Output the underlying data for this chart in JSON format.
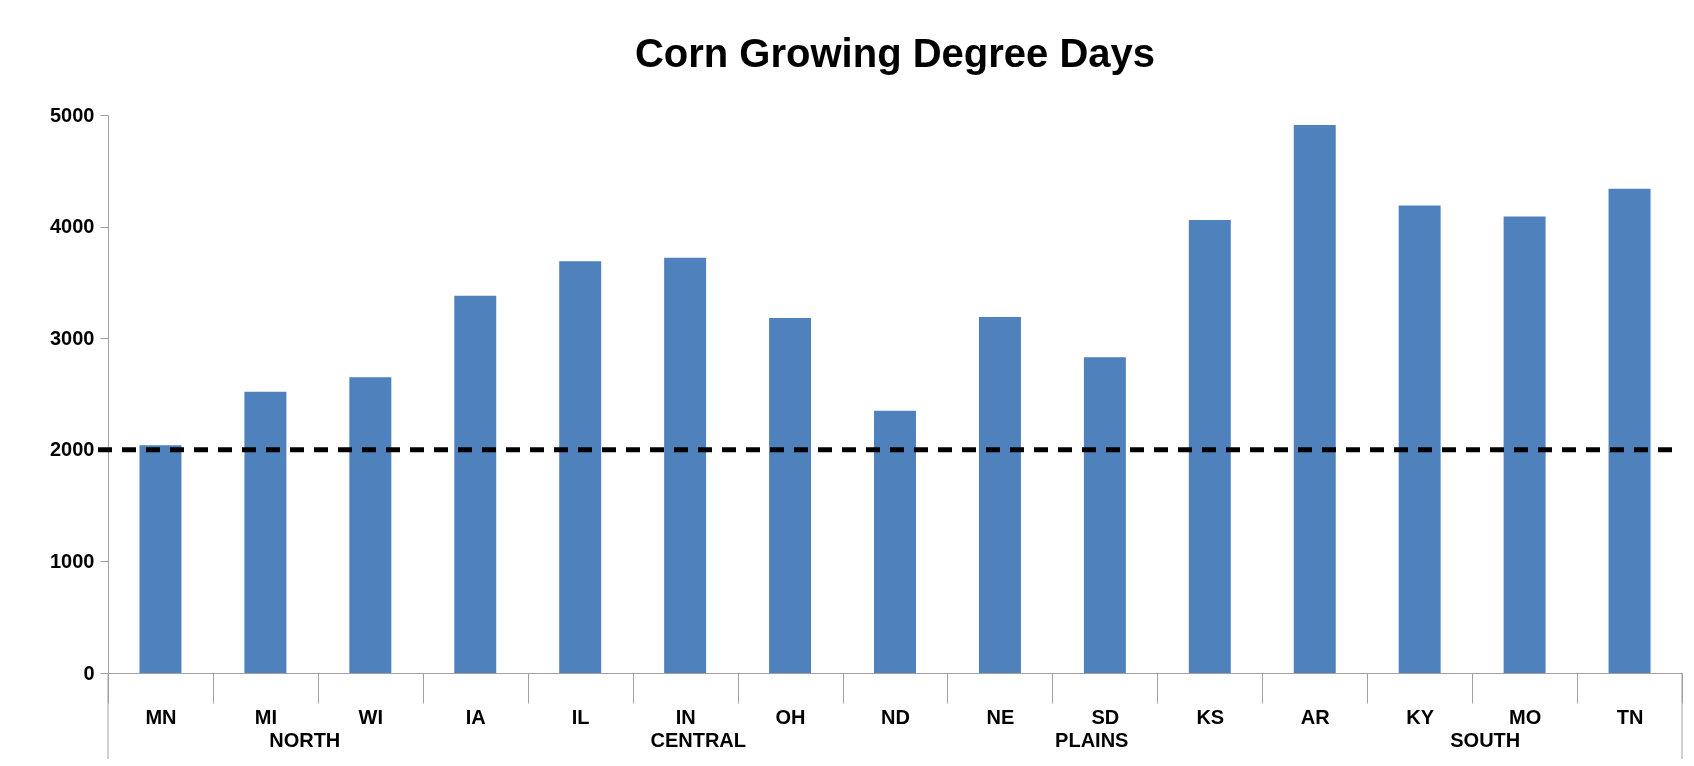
{
  "chart_data": {
    "type": "bar",
    "title": "Corn Growing Degree Days",
    "categories": [
      "MN",
      "MI",
      "WI",
      "IA",
      "IL",
      "IN",
      "OH",
      "ND",
      "NE",
      "SD",
      "KS",
      "AR",
      "KY",
      "MO",
      "TN"
    ],
    "values": [
      2040,
      2520,
      2650,
      3380,
      3690,
      3720,
      3180,
      2350,
      3190,
      2830,
      4060,
      4910,
      4190,
      4090,
      4340
    ],
    "color": "#4f81bd",
    "ylim": [
      0,
      5000
    ],
    "yticks": [
      0,
      1000,
      2000,
      3000,
      4000,
      5000
    ],
    "grid": false,
    "ref_lines": [
      {
        "axis": "y",
        "value": 2000,
        "color": "#000000",
        "line_style": "dashed"
      }
    ],
    "annotations": [
      "NORTH",
      "CENTRAL",
      "PLAINS",
      "SOUTH"
    ]
  }
}
